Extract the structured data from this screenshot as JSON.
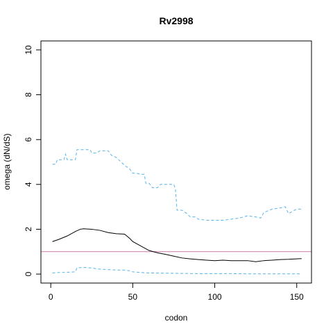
{
  "chart_data": {
    "type": "line",
    "title": "Rv2998",
    "xlabel": "codon",
    "ylabel": "omega (dN/dS)",
    "xlim": [
      -6,
      159
    ],
    "ylim": [
      -0.4,
      10.4
    ],
    "x_ticks": [
      0,
      50,
      100,
      150
    ],
    "y_ticks": [
      0,
      2,
      4,
      6,
      8,
      10
    ],
    "reference_line": {
      "y": 1,
      "color": "#cc79a7"
    },
    "grid": false,
    "colors": {
      "omega": "#000000",
      "ci": "#56b4e9"
    },
    "series": [
      {
        "style": "solid",
        "x": [
          1,
          5,
          10,
          15,
          18,
          20,
          25,
          30,
          35,
          40,
          45,
          48,
          50,
          55,
          60,
          65,
          70,
          75,
          80,
          85,
          90,
          95,
          100,
          105,
          110,
          115,
          120,
          125,
          130,
          135,
          140,
          145,
          150,
          153
        ],
        "values": [
          1.45,
          1.55,
          1.7,
          1.9,
          2.0,
          2.02,
          2.0,
          1.95,
          1.85,
          1.8,
          1.78,
          1.6,
          1.45,
          1.25,
          1.05,
          0.95,
          0.88,
          0.8,
          0.72,
          0.68,
          0.65,
          0.62,
          0.6,
          0.62,
          0.6,
          0.6,
          0.6,
          0.55,
          0.6,
          0.62,
          0.65,
          0.66,
          0.68,
          0.69
        ]
      },
      {
        "style": "dashed",
        "x": [
          1,
          3,
          4,
          5,
          8,
          9,
          10,
          12,
          15,
          16,
          20,
          24,
          25,
          28,
          30,
          35,
          37,
          40,
          45,
          48,
          50,
          52,
          55,
          57,
          58,
          60,
          62,
          65,
          67,
          70,
          75,
          76,
          77,
          80,
          83,
          85,
          88,
          90,
          95,
          100,
          105,
          110,
          115,
          120,
          125,
          128,
          130,
          135,
          140,
          143,
          145,
          150,
          153
        ],
        "values": [
          4.9,
          4.9,
          5.1,
          5.1,
          5.1,
          5.35,
          5.1,
          5.1,
          5.1,
          5.55,
          5.55,
          5.55,
          5.4,
          5.4,
          5.5,
          5.5,
          5.3,
          5.2,
          4.85,
          4.7,
          4.5,
          4.5,
          4.45,
          4.45,
          4.05,
          4.05,
          3.85,
          3.85,
          4.0,
          4.0,
          4.0,
          3.8,
          2.85,
          2.85,
          2.7,
          2.55,
          2.55,
          2.45,
          2.4,
          2.4,
          2.4,
          2.45,
          2.5,
          2.6,
          2.55,
          2.5,
          2.75,
          2.9,
          2.95,
          3.0,
          2.7,
          2.9,
          2.9
        ]
      },
      {
        "style": "dashed",
        "x": [
          1,
          5,
          10,
          15,
          16,
          20,
          25,
          30,
          35,
          40,
          45,
          48,
          50,
          55,
          60,
          70,
          80,
          90,
          100,
          110,
          120,
          130,
          140,
          150,
          153
        ],
        "values": [
          0.05,
          0.07,
          0.08,
          0.1,
          0.28,
          0.3,
          0.27,
          0.22,
          0.2,
          0.18,
          0.18,
          0.15,
          0.1,
          0.07,
          0.05,
          0.04,
          0.03,
          0.02,
          0.02,
          0.02,
          0.01,
          0.01,
          0.01,
          0.01,
          0.01
        ]
      }
    ]
  }
}
